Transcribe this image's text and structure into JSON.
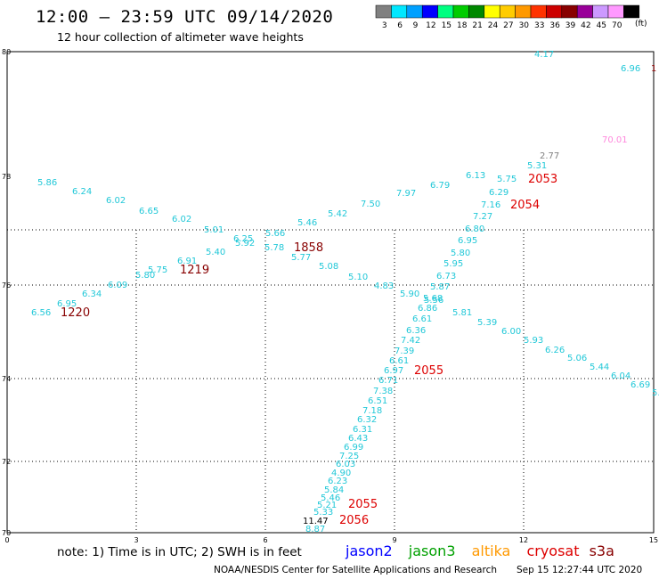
{
  "header": {
    "title": "12:00 – 23:59 UTC 09/14/2020",
    "subtitle": "12 hour collection of altimeter wave heights"
  },
  "legend_scale": {
    "unit": "(ft)",
    "bins": [
      {
        "label": "3",
        "color": "#808080"
      },
      {
        "label": "6",
        "color": "#00e8ff"
      },
      {
        "label": "9",
        "color": "#00a0ff"
      },
      {
        "label": "12",
        "color": "#0000ff"
      },
      {
        "label": "15",
        "color": "#00ff80"
      },
      {
        "label": "18",
        "color": "#00cc00"
      },
      {
        "label": "21",
        "color": "#008800"
      },
      {
        "label": "24",
        "color": "#ffff00"
      },
      {
        "label": "27",
        "color": "#ffcc00"
      },
      {
        "label": "30",
        "color": "#ff9900"
      },
      {
        "label": "33",
        "color": "#ff3300"
      },
      {
        "label": "36",
        "color": "#cc0000"
      },
      {
        "label": "39",
        "color": "#880000"
      },
      {
        "label": "42",
        "color": "#990099"
      },
      {
        "label": "45",
        "color": "#cc99ff"
      },
      {
        "label": "70",
        "color": "#ff99ff"
      },
      {
        "label": "",
        "color": "#000000"
      }
    ]
  },
  "axes": {
    "lat_labels": [
      "80",
      "78",
      "76",
      "74",
      "72",
      "70"
    ],
    "lon_labels": [
      "0",
      "3",
      "6",
      "9",
      "12",
      "15"
    ]
  },
  "colors": {
    "cyan": "#22c8d8",
    "gray": "#808080",
    "pink": "#ff88dd",
    "red": "#dd0000",
    "darkred": "#880000",
    "black": "#000000"
  },
  "readings": [
    {
      "t": "4.17",
      "c": "cyan"
    },
    {
      "t": "6.96",
      "c": "cyan"
    },
    {
      "t": "1",
      "c": "darkred"
    },
    {
      "t": "70.01",
      "c": "pink"
    },
    {
      "t": "2.77",
      "c": "gray"
    },
    {
      "t": "5.31",
      "c": "cyan"
    },
    {
      "t": "6.13",
      "c": "cyan"
    },
    {
      "t": "5.75",
      "c": "cyan"
    },
    {
      "t": "6.79",
      "c": "cyan"
    },
    {
      "t": "6.29",
      "c": "cyan"
    },
    {
      "t": "7.97",
      "c": "cyan"
    },
    {
      "t": "7.16",
      "c": "cyan"
    },
    {
      "t": "7.50",
      "c": "cyan"
    },
    {
      "t": "7.27",
      "c": "cyan"
    },
    {
      "t": "5.42",
      "c": "cyan"
    },
    {
      "t": "6.80",
      "c": "cyan"
    },
    {
      "t": "5.46",
      "c": "cyan"
    },
    {
      "t": "6.95",
      "c": "cyan"
    },
    {
      "t": "5.80",
      "c": "cyan"
    },
    {
      "t": "5.95",
      "c": "cyan"
    },
    {
      "t": "6.73",
      "c": "cyan"
    },
    {
      "t": "5.87",
      "c": "cyan"
    },
    {
      "t": "5.68",
      "c": "cyan"
    },
    {
      "t": "6.86",
      "c": "cyan"
    },
    {
      "t": "6.61",
      "c": "cyan"
    },
    {
      "t": "6.36",
      "c": "cyan"
    },
    {
      "t": "7.42",
      "c": "cyan"
    },
    {
      "t": "7.39",
      "c": "cyan"
    },
    {
      "t": "6.61",
      "c": "cyan"
    },
    {
      "t": "6.97",
      "c": "cyan"
    },
    {
      "t": "6.71",
      "c": "cyan"
    },
    {
      "t": "7.38",
      "c": "cyan"
    },
    {
      "t": "6.51",
      "c": "cyan"
    },
    {
      "t": "7.18",
      "c": "cyan"
    },
    {
      "t": "6.32",
      "c": "cyan"
    },
    {
      "t": "6.31",
      "c": "cyan"
    },
    {
      "t": "6.43",
      "c": "cyan"
    },
    {
      "t": "6.99",
      "c": "cyan"
    },
    {
      "t": "7.25",
      "c": "cyan"
    },
    {
      "t": "6.03",
      "c": "cyan"
    },
    {
      "t": "4.90",
      "c": "cyan"
    },
    {
      "t": "6.23",
      "c": "cyan"
    },
    {
      "t": "5.84",
      "c": "cyan"
    },
    {
      "t": "5.46",
      "c": "cyan"
    },
    {
      "t": "5.21",
      "c": "cyan"
    },
    {
      "t": "5.33",
      "c": "cyan"
    },
    {
      "t": "11.47",
      "c": "black"
    },
    {
      "t": "8.87",
      "c": "cyan"
    },
    {
      "t": "5.86",
      "c": "cyan"
    },
    {
      "t": "6.24",
      "c": "cyan"
    },
    {
      "t": "6.02",
      "c": "cyan"
    },
    {
      "t": "6.65",
      "c": "cyan"
    },
    {
      "t": "6.02",
      "c": "cyan"
    },
    {
      "t": "5.01",
      "c": "cyan"
    },
    {
      "t": "6.25",
      "c": "cyan"
    },
    {
      "t": "5.92",
      "c": "cyan"
    },
    {
      "t": "5.66",
      "c": "cyan"
    },
    {
      "t": "5.78",
      "c": "cyan"
    },
    {
      "t": "5.77",
      "c": "cyan"
    },
    {
      "t": "5.40",
      "c": "cyan"
    },
    {
      "t": "6.91",
      "c": "cyan"
    },
    {
      "t": "5.75",
      "c": "cyan"
    },
    {
      "t": "5.80",
      "c": "cyan"
    },
    {
      "t": "6.09",
      "c": "cyan"
    },
    {
      "t": "6.34",
      "c": "cyan"
    },
    {
      "t": "6.95",
      "c": "cyan"
    },
    {
      "t": "6.56",
      "c": "cyan"
    },
    {
      "t": "5.08",
      "c": "cyan"
    },
    {
      "t": "5.10",
      "c": "cyan"
    },
    {
      "t": "4.83",
      "c": "cyan"
    },
    {
      "t": "5.90",
      "c": "cyan"
    },
    {
      "t": "5.56",
      "c": "cyan"
    },
    {
      "t": "5.81",
      "c": "cyan"
    },
    {
      "t": "5.39",
      "c": "cyan"
    },
    {
      "t": "6.00",
      "c": "cyan"
    },
    {
      "t": "5.93",
      "c": "cyan"
    },
    {
      "t": "6.26",
      "c": "cyan"
    },
    {
      "t": "5.06",
      "c": "cyan"
    },
    {
      "t": "5.44",
      "c": "cyan"
    },
    {
      "t": "6.04",
      "c": "cyan"
    },
    {
      "t": "6.69",
      "c": "cyan"
    },
    {
      "t": "5.",
      "c": "cyan"
    }
  ],
  "times": [
    {
      "t": "2053",
      "c": "red"
    },
    {
      "t": "2054",
      "c": "red"
    },
    {
      "t": "1858",
      "c": "darkred"
    },
    {
      "t": "1219",
      "c": "darkred"
    },
    {
      "t": "1220",
      "c": "darkred"
    },
    {
      "t": "2055",
      "c": "red"
    },
    {
      "t": "2055",
      "c": "red"
    },
    {
      "t": "2056",
      "c": "red"
    }
  ],
  "note": "note:  1) Time is in UTC;  2) SWH is in feet",
  "satellites": [
    {
      "name": "jason2",
      "color": "#0000ff"
    },
    {
      "name": "jason3",
      "color": "#00a000"
    },
    {
      "name": "altika",
      "color": "#ff9900"
    },
    {
      "name": "cryosat",
      "color": "#dd0000"
    },
    {
      "name": "s3a",
      "color": "#880000"
    }
  ],
  "footer": {
    "credit": "NOAA/NESDIS Center for Satellite Applications and Research",
    "timestamp": "Sep 15 12:27:44 UTC 2020"
  }
}
